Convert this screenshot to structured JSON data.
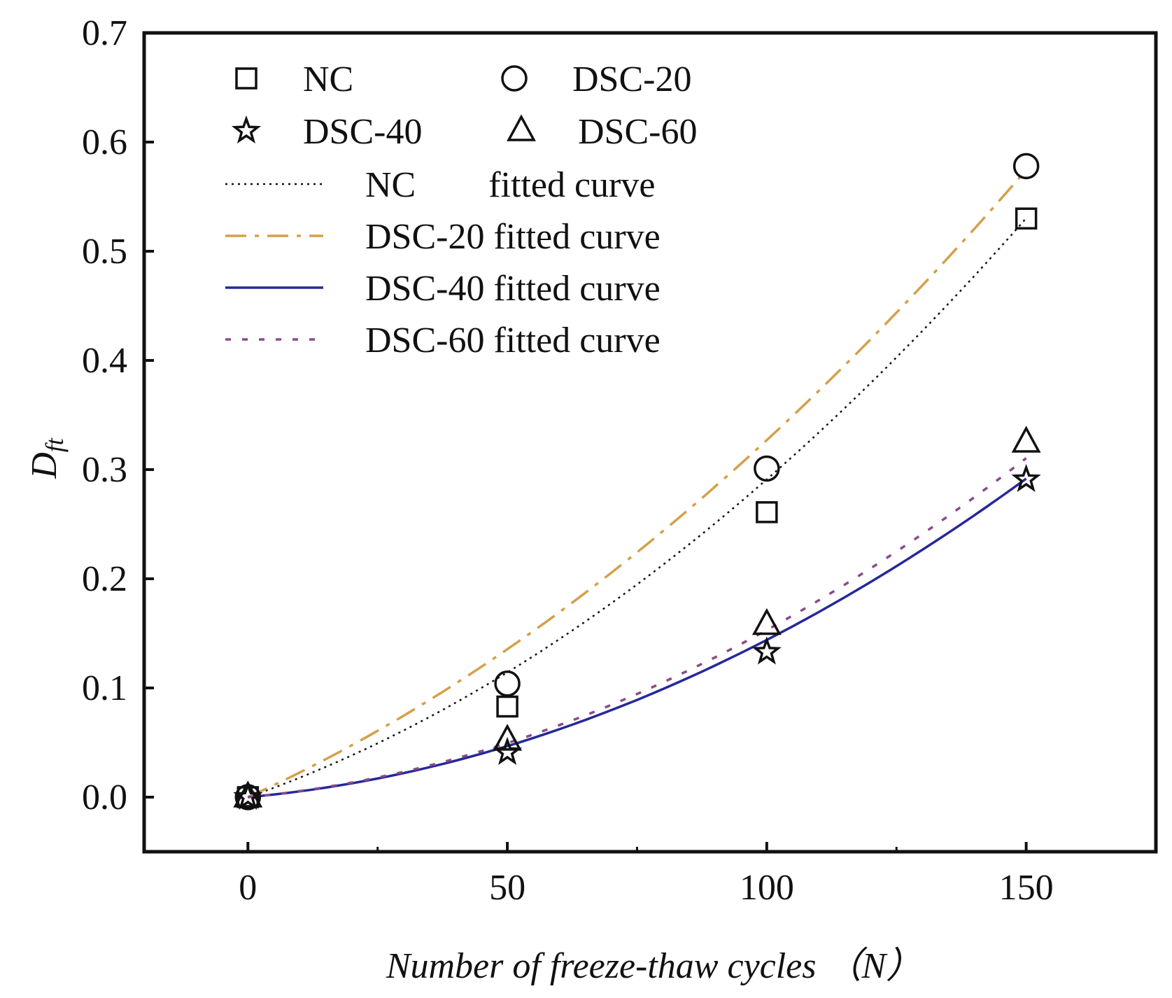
{
  "chart_data": {
    "type": "scatter",
    "title": "",
    "xlabel": "Number of freeze-thaw cycles （N）",
    "ylabel": "D",
    "ylabel_subscript": "ft",
    "xlim": [
      -20,
      175
    ],
    "ylim": [
      -0.05,
      0.7
    ],
    "xticks": [
      0,
      50,
      100,
      150
    ],
    "xtick_labels": [
      "0",
      "50",
      "100",
      "150"
    ],
    "yticks": [
      0.0,
      0.1,
      0.2,
      0.3,
      0.4,
      0.5,
      0.6,
      0.7
    ],
    "ytick_labels": [
      "0.0",
      "0.1",
      "0.2",
      "0.3",
      "0.4",
      "0.5",
      "0.6",
      "0.7"
    ],
    "grid": false,
    "legend_position": "top-left",
    "series": [
      {
        "name": "NC",
        "marker": "square",
        "x": [
          0,
          50,
          100,
          150
        ],
        "y": [
          0.0,
          0.083,
          0.261,
          0.53
        ]
      },
      {
        "name": "DSC-20",
        "marker": "circle",
        "x": [
          0,
          50,
          100,
          150
        ],
        "y": [
          0.0,
          0.104,
          0.301,
          0.578
        ]
      },
      {
        "name": "DSC-40",
        "marker": "star",
        "x": [
          0,
          50,
          100,
          150
        ],
        "y": [
          0.0,
          0.041,
          0.133,
          0.291
        ]
      },
      {
        "name": "DSC-60",
        "marker": "triangle",
        "x": [
          0,
          50,
          100,
          150
        ],
        "y": [
          0.0,
          0.052,
          0.158,
          0.325
        ]
      }
    ],
    "fitted_curves": [
      {
        "name": "NC        fitted curve",
        "style": "dotted",
        "color": "#111111",
        "x": [
          0,
          150
        ],
        "a": 1.25e-05,
        "b": 0.00166
      },
      {
        "name": "DSC-20 fitted curve",
        "style": "dashdot",
        "color": "#d4a04a",
        "x": [
          0,
          150
        ],
        "a": 1.12e-05,
        "b": 0.00215
      },
      {
        "name": "DSC-40 fitted curve",
        "style": "solid",
        "color": "#26289a",
        "x": [
          0,
          150
        ],
        "a": 1.01e-05,
        "b": 0.00043
      },
      {
        "name": "DSC-60 fitted curve",
        "style": "dashed",
        "color": "#8a4a8a",
        "x": [
          0,
          150
        ],
        "a": 1.08e-05,
        "b": 0.00045
      }
    ]
  }
}
